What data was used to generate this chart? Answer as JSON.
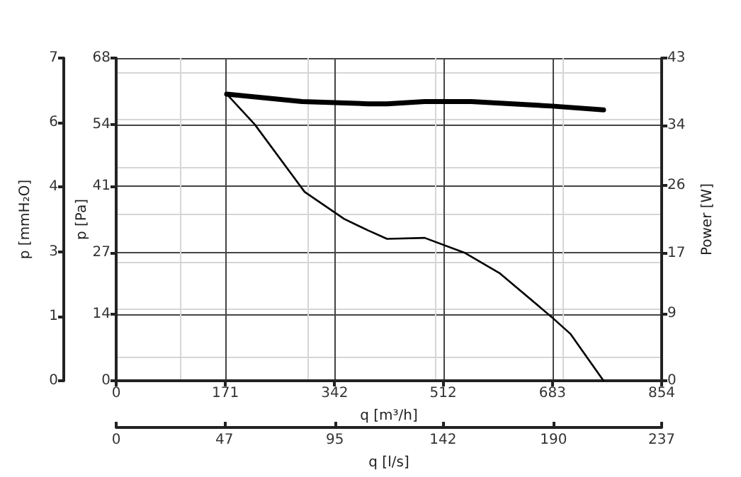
{
  "chart_data": {
    "type": "line",
    "xlabel": "q [m³/h]",
    "ylabel": "p [Pa]",
    "y2label": "Power [W]",
    "y3label": "p [mmH₂O]",
    "x2label": "q [l/s]",
    "xlim": [
      0,
      854
    ],
    "xticks": [
      0,
      171,
      342,
      512,
      683,
      854
    ],
    "ylim": [
      0,
      68
    ],
    "yticks": [
      0,
      14,
      27,
      41,
      54,
      68
    ],
    "y2lim": [
      0,
      43
    ],
    "y2ticks": [
      0,
      9,
      17,
      26,
      34,
      43
    ],
    "y3lim": [
      0,
      7
    ],
    "y3ticks": [
      0,
      {
        "value": 1.4,
        "label": "1"
      },
      {
        "value": 2.8,
        "label": "3"
      },
      {
        "value": 4.2,
        "label": "4"
      },
      {
        "value": 5.6,
        "label": "6"
      },
      7
    ],
    "x2lim": [
      0,
      237
    ],
    "x2ticks": [
      0,
      47,
      95,
      142,
      190,
      237
    ],
    "grid": true,
    "marker": "none",
    "line_style": "solid",
    "series": [
      {
        "color": "#000000",
        "x": [
          173,
          217,
          295,
          357,
          394,
          424,
          483,
          545,
          601,
          682,
          711,
          763
        ],
        "values": [
          60.4,
          54,
          39.8,
          34.1,
          31.7,
          29.9,
          30.1,
          27,
          22.6,
          13.4,
          9.9,
          0
        ]
      },
      {
        "color": "#000000",
        "axis": "y2",
        "x": [
          173,
          291,
          394,
          424,
          483,
          556,
          682,
          763
        ],
        "values": [
          38.2,
          37.2,
          36.9,
          36.9,
          37.2,
          37.2,
          36.6,
          36.1
        ]
      }
    ]
  }
}
